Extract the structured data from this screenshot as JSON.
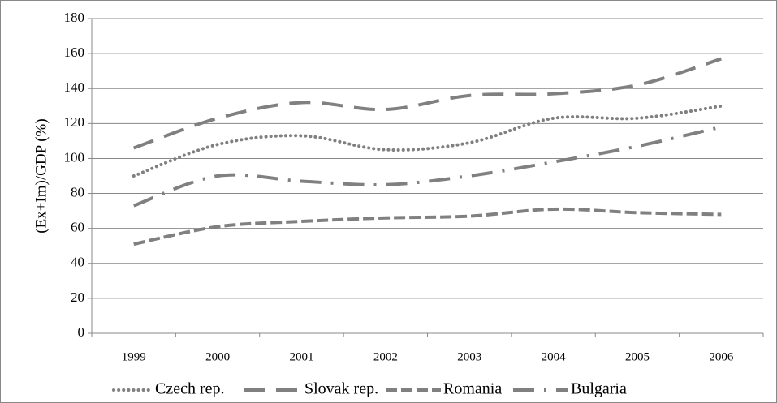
{
  "chart_data": {
    "type": "line",
    "y_label": "(Ex+Im)/GDP (%)",
    "categories": [
      "1999",
      "2000",
      "2001",
      "2002",
      "2003",
      "2004",
      "2005",
      "2006"
    ],
    "series": [
      {
        "name": "Czech rep.",
        "color": "#808080",
        "style": "dotted",
        "values": [
          90,
          108,
          113,
          105,
          109,
          123,
          123,
          130
        ]
      },
      {
        "name": "Slovak rep.",
        "color": "#808080",
        "style": "long-dash",
        "values": [
          106,
          123,
          132,
          128,
          136,
          137,
          142,
          157
        ]
      },
      {
        "name": "Romania",
        "color": "#808080",
        "style": "dash",
        "values": [
          51,
          61,
          64,
          66,
          67,
          71,
          69,
          68
        ]
      },
      {
        "name": "Bulgaria",
        "color": "#808080",
        "style": "dash-dot",
        "values": [
          73,
          90,
          87,
          85,
          90,
          98,
          107,
          118
        ]
      }
    ],
    "ylim": [
      0,
      180
    ],
    "yticks": [
      0,
      20,
      40,
      60,
      80,
      100,
      120,
      140,
      160,
      180
    ],
    "grid": true,
    "legend": "bottom"
  }
}
